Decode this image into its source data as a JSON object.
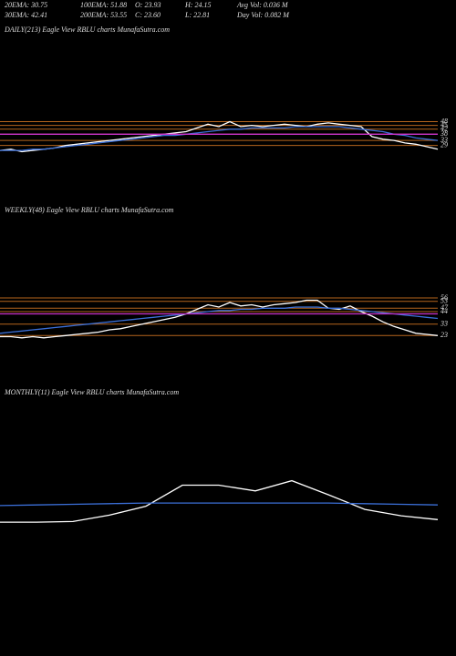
{
  "header": {
    "row1": [
      "20EMA: 30.75",
      "100EMA: 51.88",
      "O: 23.93",
      "H: 24.15",
      "Avg Vol: 0.036  M"
    ],
    "row2": [
      "30EMA: 42.41",
      "200EMA: 53.55",
      "C: 23.60",
      "L: 22.81",
      "Day Vol: 0.082  M"
    ]
  },
  "chart_data": [
    {
      "type": "line",
      "title": "DAILY(213) Eagle   View  RBLU charts MunafaSutra.com",
      "ylim": [
        20,
        52
      ],
      "yticks": [
        29,
        33,
        38,
        42,
        45,
        48
      ],
      "grid_color": "#b5651d",
      "series": [
        {
          "color": "#ffffff",
          "values": [
            25,
            26,
            24,
            25,
            26,
            27,
            29,
            30,
            31,
            32,
            33,
            34,
            35,
            36,
            37,
            38,
            39,
            40,
            43,
            46,
            44,
            48,
            44,
            45,
            44,
            45,
            46,
            45,
            44,
            46,
            47,
            46,
            45,
            44,
            36,
            34,
            33,
            31,
            30,
            28,
            26
          ]
        },
        {
          "color": "#3b6fd8",
          "values": [
            25,
            25,
            25,
            26,
            26,
            27,
            28,
            29,
            30,
            31,
            32,
            33,
            34,
            35,
            36,
            37,
            37,
            38,
            39,
            40,
            41,
            42,
            42,
            43,
            43,
            43,
            43,
            44,
            44,
            44,
            44,
            44,
            43,
            42,
            41,
            40,
            38,
            37,
            35,
            34,
            33
          ]
        },
        {
          "color": "#cc33cc",
          "values": [
            38,
            38,
            38,
            38,
            38,
            38,
            38,
            38,
            38,
            38,
            38,
            38,
            38,
            38,
            38,
            38,
            38,
            38,
            38,
            38,
            38,
            38,
            38,
            38,
            38,
            38,
            38,
            38,
            38,
            38,
            38,
            38,
            38,
            38,
            38,
            38,
            38,
            38,
            38,
            38,
            38
          ]
        }
      ]
    },
    {
      "type": "line",
      "title": "WEEKLY(48) Eagle   View  RBLU charts MunafaSutra.com",
      "ylim": [
        20,
        60
      ],
      "yticks": [
        23,
        33,
        44,
        47,
        53,
        56
      ],
      "grid_color": "#b5651d",
      "series": [
        {
          "color": "#ffffff",
          "values": [
            22,
            22,
            21,
            22,
            21,
            22,
            23,
            24,
            25,
            26,
            28,
            29,
            31,
            33,
            35,
            37,
            39,
            42,
            46,
            50,
            48,
            52,
            49,
            50,
            48,
            50,
            51,
            52,
            54,
            54,
            47,
            46,
            49,
            44,
            40,
            35,
            31,
            28,
            25,
            24,
            23
          ]
        },
        {
          "color": "#3b6fd8",
          "values": [
            25,
            26,
            27,
            28,
            29,
            30,
            31,
            32,
            33,
            34,
            35,
            36,
            37,
            38,
            39,
            40,
            41,
            42,
            43,
            44,
            45,
            45,
            46,
            46,
            47,
            47,
            47,
            48,
            48,
            48,
            47,
            47,
            46,
            45,
            44,
            43,
            42,
            41,
            40,
            39,
            38
          ]
        },
        {
          "color": "#cc33cc",
          "values": [
            42,
            42,
            42,
            42,
            42,
            42,
            42,
            42,
            42,
            42,
            42,
            42,
            42,
            42,
            42,
            42,
            42,
            42,
            42,
            42,
            42,
            42,
            42,
            42,
            42,
            42,
            42,
            42,
            42,
            42,
            42,
            42,
            42,
            42,
            42,
            42,
            42,
            42,
            42,
            42,
            42
          ]
        }
      ]
    },
    {
      "type": "line",
      "title": "MONTHLY(11) Eagle   View  RBLU charts MunafaSutra.com",
      "ylim": [
        0,
        100
      ],
      "series": [
        {
          "color": "#ffffff",
          "values": [
            17,
            17,
            18,
            28,
            42,
            75,
            75,
            66,
            82,
            60,
            37,
            27,
            21
          ]
        },
        {
          "color": "#3b6fd8",
          "values": [
            43,
            44,
            45,
            46,
            47,
            47,
            47,
            47,
            47,
            47,
            46,
            45,
            44
          ]
        }
      ]
    }
  ]
}
